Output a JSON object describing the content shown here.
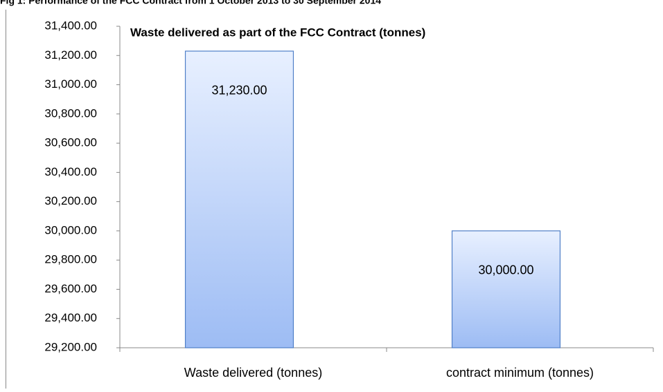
{
  "chart_data": {
    "type": "bar",
    "caption": "Fig 1: Performance of the FCC Contract from 1 October 2013 to 30 September 2014",
    "title": "Waste delivered as part of the FCC Contract (tonnes)",
    "categories": [
      "Waste delivered (tonnes)",
      "contract minimum (tonnes)"
    ],
    "values": [
      31230,
      30000
    ],
    "value_labels": [
      "31,230.00",
      "30,000.00"
    ],
    "color": "#b9d0f7",
    "ylim": [
      29200,
      31400
    ],
    "yticks": [
      {
        "value": 29200,
        "label": "29,200.00"
      },
      {
        "value": 29400,
        "label": "29,400.00"
      },
      {
        "value": 29600,
        "label": "29,600.00"
      },
      {
        "value": 29800,
        "label": "29,800.00"
      },
      {
        "value": 30000,
        "label": "30,000.00"
      },
      {
        "value": 30200,
        "label": "30,200.00"
      },
      {
        "value": 30400,
        "label": "30,400.00"
      },
      {
        "value": 30600,
        "label": "30,600.00"
      },
      {
        "value": 30800,
        "label": "30,800.00"
      },
      {
        "value": 31000,
        "label": "31,000.00"
      },
      {
        "value": 31200,
        "label": "31,200.00"
      },
      {
        "value": 31400,
        "label": "31,400.00"
      }
    ],
    "grid": false
  }
}
